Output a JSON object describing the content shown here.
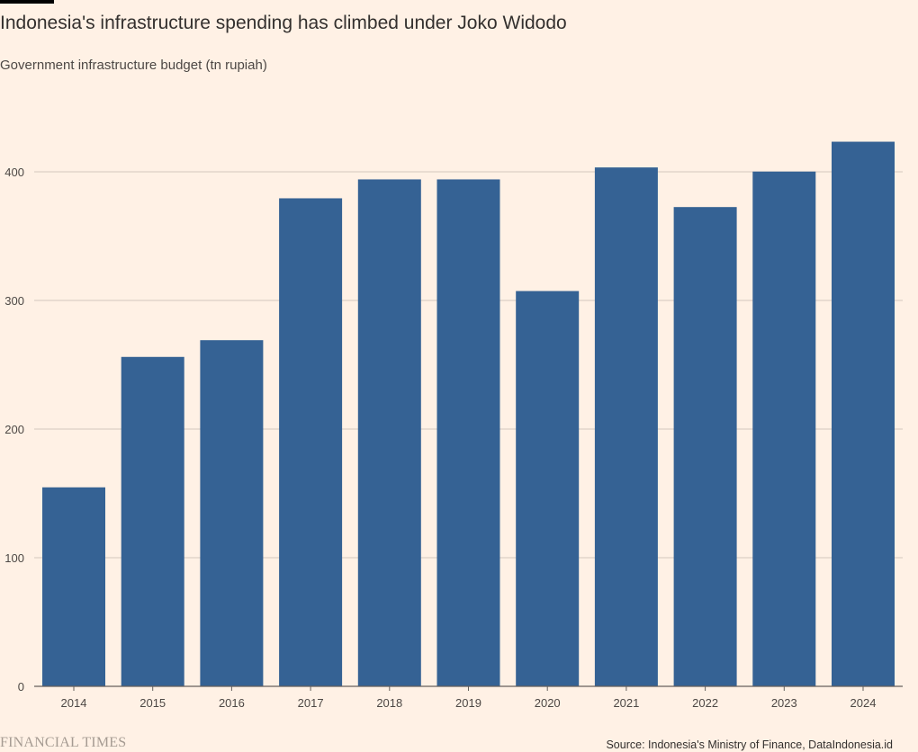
{
  "header": {
    "title": "Indonesia's infrastructure spending has climbed under Joko Widodo",
    "subtitle": "Government infrastructure budget (tn rupiah)"
  },
  "footer": {
    "brand": "FINANCIAL TIMES",
    "source": "Source: Indonesia's Ministry of Finance, DataIndonesia.id"
  },
  "colors": {
    "background": "#fff1e5",
    "bar": "#356294",
    "gridline": "#d3c8bd",
    "axis": "#66605c"
  },
  "chart_data": {
    "type": "bar",
    "title": "Indonesia's infrastructure spending has climbed under Joko Widodo",
    "subtitle": "Government infrastructure budget (tn rupiah)",
    "xlabel": "",
    "ylabel": "",
    "categories": [
      "2014",
      "2015",
      "2016",
      "2017",
      "2018",
      "2019",
      "2020",
      "2021",
      "2022",
      "2023",
      "2024"
    ],
    "series": [
      {
        "values": [
          154.7,
          256.1,
          269.1,
          379.4,
          394.1,
          394.1,
          307.3,
          403.4,
          372.6,
          400.2,
          423.4
        ]
      }
    ],
    "ylim": [
      0,
      440
    ],
    "yticks": [
      0,
      100,
      200,
      300,
      400
    ],
    "grid": true,
    "legend": "none"
  }
}
